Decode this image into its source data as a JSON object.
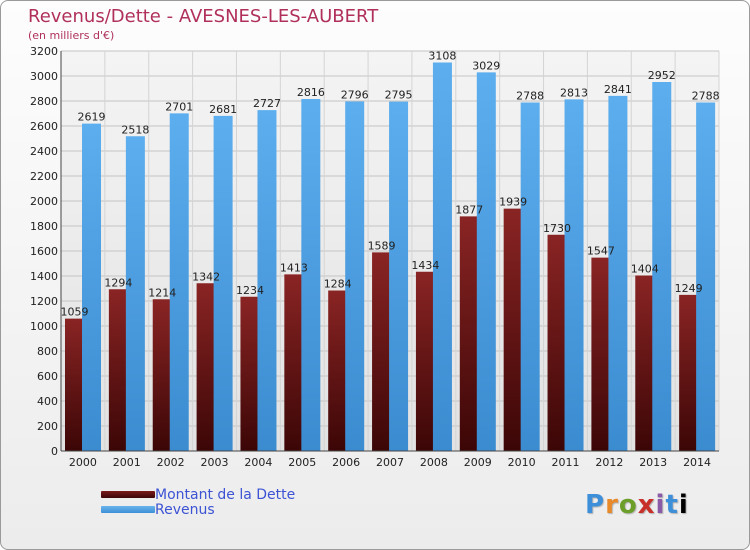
{
  "title": "Revenus/Dette - AVESNES-LES-AUBERT",
  "subtitle": "(en milliers d'€)",
  "colors": {
    "debt": "#6b1414",
    "revenue": "#4a9fe4",
    "title": "#b0305a",
    "legend_text": "#3c53d4"
  },
  "legend": {
    "debt_label": "Montant de la Dette",
    "revenue_label": "Revenus"
  },
  "logo": [
    "P",
    "r",
    "o",
    "x",
    "i",
    "t",
    "i"
  ],
  "chart_data": {
    "type": "bar",
    "title": "Revenus/Dette - AVESNES-LES-AUBERT",
    "ylabel": "(en milliers d'€)",
    "xlabel": "",
    "categories": [
      "2000",
      "2001",
      "2002",
      "2003",
      "2004",
      "2005",
      "2006",
      "2007",
      "2008",
      "2009",
      "2010",
      "2011",
      "2012",
      "2013",
      "2014"
    ],
    "series": [
      {
        "name": "Montant de la Dette",
        "values": [
          1059,
          1294,
          1214,
          1342,
          1234,
          1413,
          1284,
          1589,
          1434,
          1877,
          1939,
          1730,
          1547,
          1404,
          1249
        ],
        "labels": [
          "1059",
          "1294",
          "1214",
          "1342",
          "1234",
          "1413",
          "1284",
          "1589",
          "1434",
          "1877",
          "1939",
          "1730",
          "1547",
          "1404",
          "1249"
        ]
      },
      {
        "name": "Revenus",
        "values": [
          2619,
          2518,
          2701,
          2681,
          2727,
          2816,
          2796,
          2795,
          3108,
          3029,
          2788,
          2813,
          2841,
          2952,
          2788
        ],
        "labels": [
          "2619",
          "2518",
          "2701",
          "2681",
          "2727",
          "2816",
          "2796",
          "2795",
          "3108",
          "3029",
          "2788",
          "2813",
          "2841",
          "2952",
          "2788"
        ]
      }
    ],
    "ylim": [
      0,
      3200
    ],
    "yticks": [
      "0",
      "200",
      "400",
      "600",
      "800",
      "1000",
      "1200",
      "1400",
      "1600",
      "1800",
      "2000",
      "2200",
      "2400",
      "2600",
      "2800",
      "3000",
      "3200"
    ],
    "grid": true,
    "legend_position": "bottom-left"
  }
}
